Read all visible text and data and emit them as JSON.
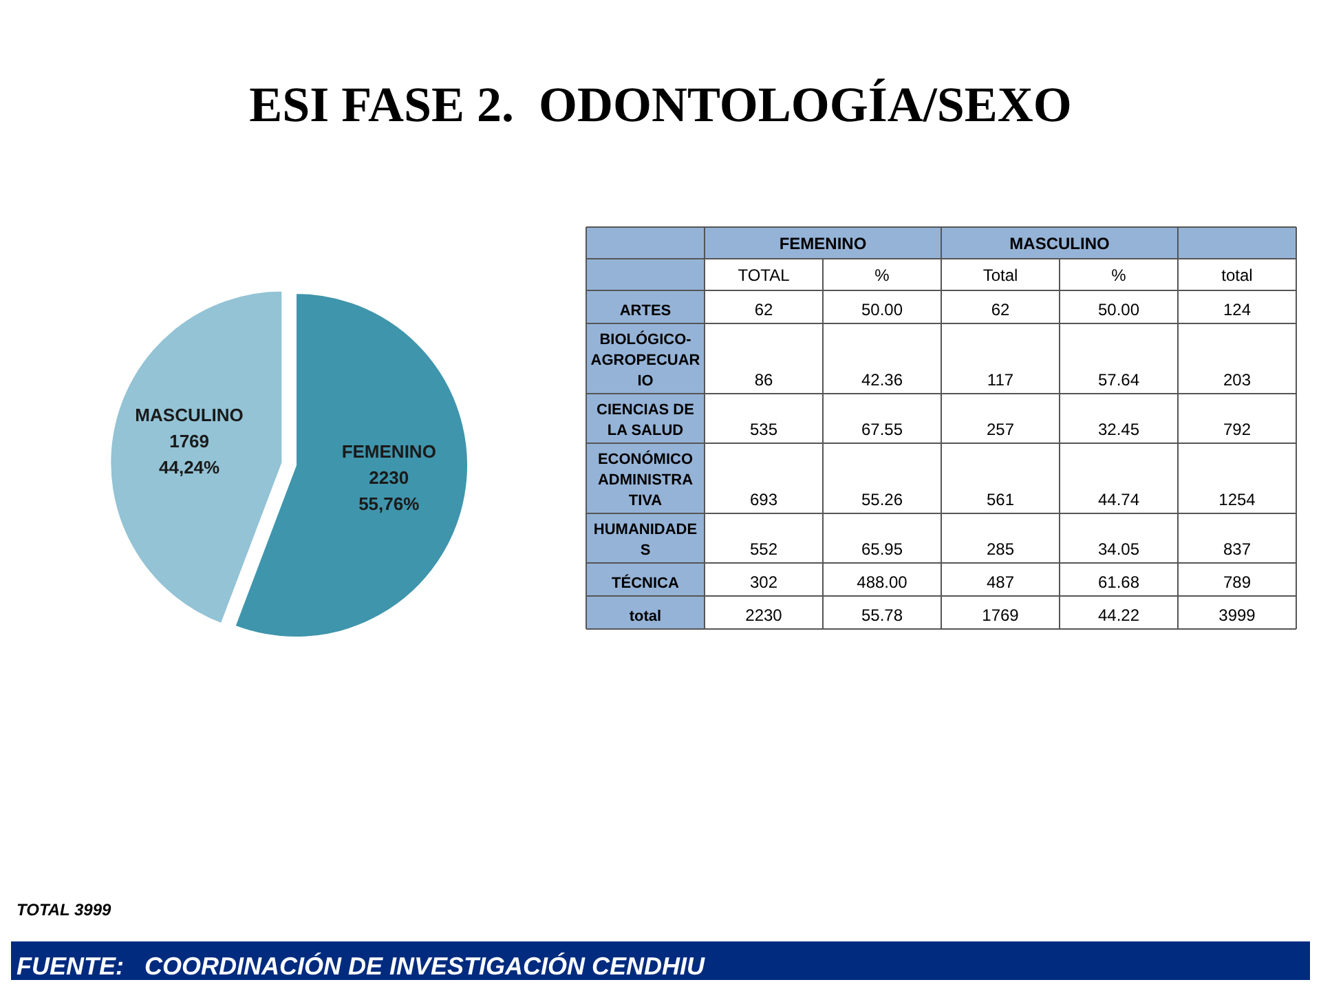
{
  "chart_data": [
    {
      "type": "pie",
      "title": "ESI FASE 2.  ODONTOLOGÍA/SEXO",
      "categories": [
        "FEMENINO",
        "MASCULINO"
      ],
      "values": [
        55.76,
        44.24
      ],
      "colors": [
        "#3f95ac",
        "#93c3d5"
      ],
      "value_labels": [
        "55,76%",
        "44,24%"
      ],
      "annotations": [
        {
          "text": "2230",
          "x": "FEMENINO"
        },
        {
          "text": "1769",
          "x": "MASCULINO"
        },
        "TOTAL  3999",
        "FUENTE:   COORDINACIÓN DE INVESTIGACIÓN CENDHIU"
      ]
    },
    {
      "type": "other",
      "annotations": [
        "FEMENINO",
        "MASCULINO"
      ],
      "categories": [
        "TOTAL",
        "%",
        "Total",
        "%",
        "total"
      ],
      "y_categories": [
        "ARTES",
        "BIOLÓGICO-AGROPECUARIO",
        "CIENCIAS DE LA SALUD",
        "ECONÓMICO ADMINISTRATIVA",
        "HUMANIDADES",
        "TÉCNICA",
        "total"
      ],
      "cell_labels": [
        [
          "62",
          "50.00",
          "62",
          "50.00",
          "124"
        ],
        [
          "86",
          "42.36",
          "117",
          "57.64",
          "203"
        ],
        [
          "535",
          "67.55",
          "257",
          "32.45",
          "792"
        ],
        [
          "693",
          "55.26",
          "561",
          "44.74",
          "1254"
        ],
        [
          "552",
          "65.95",
          "285",
          "34.05",
          "837"
        ],
        [
          "302",
          "488.00",
          "487",
          "61.68",
          "789"
        ],
        [
          "2230",
          "55.78",
          "1769",
          "44.22",
          "3999"
        ]
      ],
      "color": "#95b3d7"
    }
  ]
}
